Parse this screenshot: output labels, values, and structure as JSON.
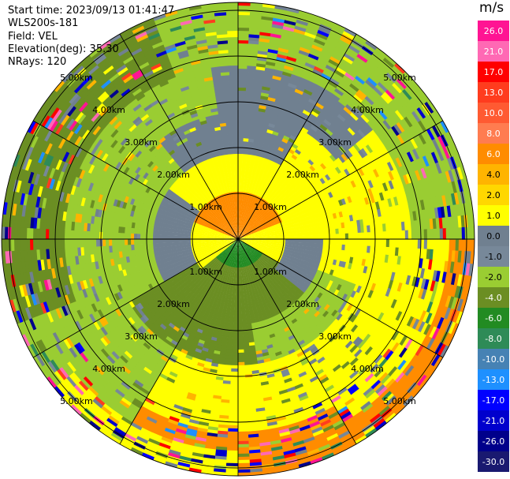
{
  "header": {
    "start_time": "Start time: 2023/09/13 01:41:47",
    "station": "WLS200s-181",
    "field": "Field: VEL",
    "elevation": "Elevation(deg): 35.30",
    "nrays": "NRays: 120"
  },
  "colorbar": {
    "unit": "m/s",
    "labels": [
      "26.0",
      "21.0",
      "17.0",
      "13.0",
      "10.0",
      "8.0",
      "6.0",
      "4.0",
      "2.0",
      "1.0",
      "0.0",
      "-1.0",
      "-2.0",
      "-4.0",
      "-6.0",
      "-8.0",
      "-10.0",
      "-13.0",
      "-17.0",
      "-21.0",
      "-26.0",
      "-30.0"
    ],
    "colors": [
      "#ff1493",
      "#ff69b4",
      "#ff0000",
      "#ff3c1e",
      "#ff5a32",
      "#ff7c50",
      "#ff8c00",
      "#ffb400",
      "#ffd700",
      "#ffff00",
      "#708090",
      "#778899",
      "#9acd32",
      "#6b8e23",
      "#228b22",
      "#2e8b57",
      "#4682b4",
      "#1e90ff",
      "#0000ff",
      "#0000cd",
      "#00008b",
      "#191970"
    ]
  },
  "rings": {
    "labels": [
      "1.00km",
      "2.00km",
      "3.00km",
      "4.00km",
      "5.00km"
    ]
  }
}
